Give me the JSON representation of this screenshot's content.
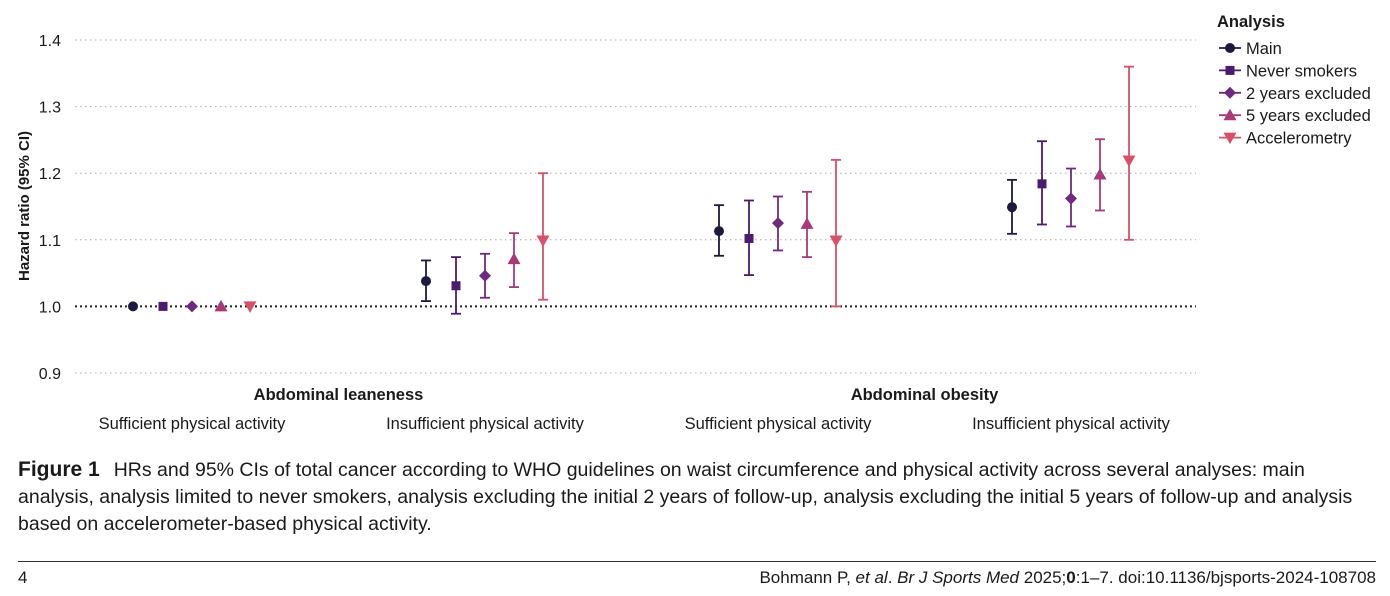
{
  "chart_data": {
    "type": "scatter",
    "subtype": "point-estimate-with-95-ci",
    "ylabel": "Hazard ratio (95% CI)",
    "ylim": [
      0.9,
      1.4
    ],
    "yticks": [
      "0.9",
      "1.0",
      "1.1",
      "1.2",
      "1.3",
      "1.4"
    ],
    "reference_line": 1.0,
    "grid": "horizontal dotted",
    "legend": {
      "title": "Analysis",
      "position": "top-right"
    },
    "groups": [
      {
        "label": "Abdominal leaneness",
        "categories": [
          "Sufficient physical activity",
          "Insufficient physical activity"
        ]
      },
      {
        "label": "Abdominal obesity",
        "categories": [
          "Sufficient physical activity",
          "Insufficient physical activity"
        ]
      }
    ],
    "series": [
      {
        "name": "Main",
        "marker": "circle",
        "color": "#1c1a3d",
        "values": [
          1.0,
          1.038,
          1.113,
          1.149
        ],
        "lower": [
          1.0,
          1.008,
          1.076,
          1.109
        ],
        "upper": [
          1.0,
          1.069,
          1.152,
          1.19
        ]
      },
      {
        "name": "Never smokers",
        "marker": "square",
        "color": "#4a1b6e",
        "values": [
          1.0,
          1.031,
          1.102,
          1.184
        ],
        "lower": [
          1.0,
          0.989,
          1.047,
          1.123
        ],
        "upper": [
          1.0,
          1.074,
          1.159,
          1.248
        ]
      },
      {
        "name": "2 years excluded",
        "marker": "diamond",
        "color": "#6e2a7c",
        "values": [
          1.0,
          1.046,
          1.125,
          1.162
        ],
        "lower": [
          1.0,
          1.013,
          1.084,
          1.12
        ],
        "upper": [
          1.0,
          1.079,
          1.165,
          1.207
        ]
      },
      {
        "name": "5 years excluded",
        "marker": "triangle-up",
        "color": "#a83a78",
        "values": [
          1.0,
          1.071,
          1.124,
          1.198
        ],
        "lower": [
          1.0,
          1.029,
          1.074,
          1.144
        ],
        "upper": [
          1.0,
          1.11,
          1.172,
          1.251
        ]
      },
      {
        "name": "Accelerometry",
        "marker": "triangle-down",
        "color": "#d9506a",
        "values": [
          1.0,
          1.099,
          1.099,
          1.219
        ],
        "lower": [
          1.0,
          1.01,
          1.0,
          1.1
        ],
        "upper": [
          1.0,
          1.2,
          1.22,
          1.36
        ]
      }
    ]
  },
  "caption": {
    "label": "Figure 1",
    "text": "HRs and 95% CIs of total cancer according to WHO guidelines on waist circumference and physical activity across several analyses: main analysis, analysis limited to never smokers, analysis excluding the initial 2 years of follow-up, analysis excluding the initial 5 years of follow-up and analysis based on accelerometer-based physical activity."
  },
  "footer": {
    "page_number": "4",
    "citation_authors": "Bohmann P, ",
    "citation_etal": "et al",
    "citation_sep": ". ",
    "citation_journal": "Br J Sports Med",
    "citation_year": " 2025;",
    "citation_volume": "0",
    "citation_rest": ":1–7. doi:10.1136/bjsports-2024-108708"
  }
}
